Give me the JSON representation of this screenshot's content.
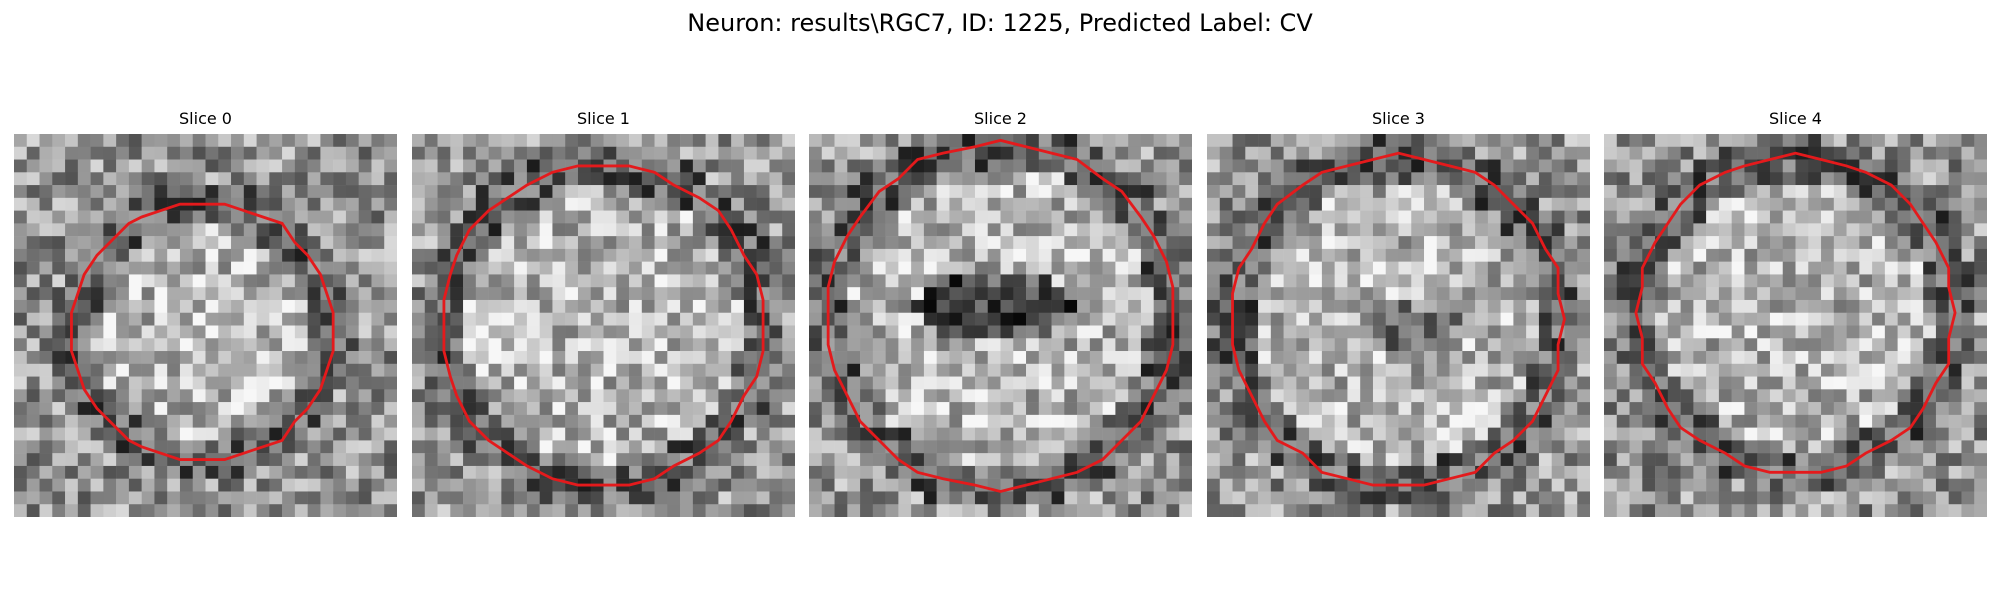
{
  "figure": {
    "title": "Neuron: results\\RGC7, ID: 1225, Predicted Label: CV"
  },
  "panels": [
    {
      "title": "Slice 0",
      "contour_color": "#e41a1c"
    },
    {
      "title": "Slice 1",
      "contour_color": "#e41a1c"
    },
    {
      "title": "Slice 2",
      "contour_color": "#e41a1c"
    },
    {
      "title": "Slice 3",
      "contour_color": "#e41a1c"
    },
    {
      "title": "Slice 4",
      "contour_color": "#e41a1c"
    }
  ]
}
